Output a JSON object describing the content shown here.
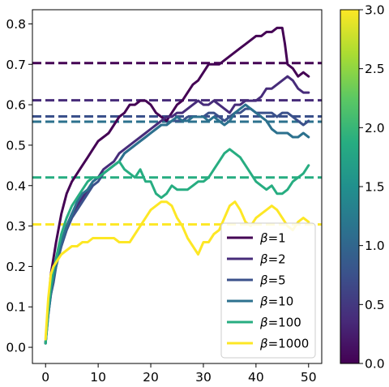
{
  "chart_data": {
    "type": "line",
    "title": "",
    "xlabel": "",
    "ylabel": "",
    "xlim": [
      -2.5,
      52.5
    ],
    "ylim": [
      -0.04,
      0.835
    ],
    "x_ticks": [
      0,
      10,
      20,
      30,
      40,
      50
    ],
    "y_ticks": [
      0.0,
      0.1,
      0.2,
      0.3,
      0.4,
      0.5,
      0.6,
      0.7,
      0.8
    ],
    "x_tick_labels": [
      "0",
      "10",
      "20",
      "30",
      "40",
      "50"
    ],
    "y_tick_labels": [
      "0.0",
      "0.1",
      "0.2",
      "0.3",
      "0.4",
      "0.5",
      "0.6",
      "0.7",
      "0.8"
    ],
    "legend_placement": "lower-right",
    "grid": false,
    "colormap": "viridis",
    "colorbar": {
      "range": [
        0.0,
        3.0
      ],
      "ticks": [
        0.0,
        0.5,
        1.0,
        1.5,
        2.0,
        2.5,
        3.0
      ],
      "tick_labels": [
        "0.0",
        "0.5",
        "1.0",
        "1.5",
        "2.0",
        "2.5",
        "3.0"
      ],
      "stops": [
        "#440154",
        "#472c7a",
        "#3b518b",
        "#2c718e",
        "#21908d",
        "#27ad81",
        "#5cc863",
        "#aadc32",
        "#fde725"
      ]
    },
    "series": [
      {
        "name": "β=1",
        "label_prefix": "β",
        "label_value": "=1",
        "color": "#440154",
        "baseline": 0.703,
        "x": [
          0,
          0.5,
          1,
          1.5,
          2,
          3,
          4,
          5,
          6,
          7,
          8,
          9,
          10,
          11,
          12,
          13,
          14,
          15,
          16,
          17,
          18,
          19,
          20,
          21,
          22,
          23,
          24,
          25,
          26,
          27,
          28,
          29,
          30,
          31,
          32,
          33,
          34,
          35,
          36,
          37,
          38,
          39,
          40,
          41,
          42,
          43,
          44,
          45,
          45.5,
          46,
          47,
          48,
          49,
          50
        ],
        "y": [
          0.01,
          0.1,
          0.18,
          0.22,
          0.26,
          0.33,
          0.38,
          0.41,
          0.43,
          0.45,
          0.47,
          0.49,
          0.51,
          0.52,
          0.53,
          0.55,
          0.57,
          0.58,
          0.6,
          0.6,
          0.61,
          0.61,
          0.6,
          0.58,
          0.57,
          0.56,
          0.58,
          0.6,
          0.61,
          0.63,
          0.65,
          0.66,
          0.68,
          0.7,
          0.7,
          0.7,
          0.71,
          0.72,
          0.73,
          0.74,
          0.75,
          0.76,
          0.77,
          0.77,
          0.78,
          0.78,
          0.79,
          0.79,
          0.75,
          0.7,
          0.69,
          0.67,
          0.68,
          0.67
        ]
      },
      {
        "name": "β=2",
        "label_prefix": "β",
        "label_value": "=2",
        "color": "#472c7a",
        "baseline": 0.611,
        "x": [
          0,
          0.5,
          1,
          1.5,
          2,
          3,
          4,
          5,
          6,
          7,
          8,
          9,
          10,
          11,
          12,
          13,
          14,
          15,
          16,
          17,
          18,
          19,
          20,
          21,
          22,
          23,
          24,
          25,
          26,
          27,
          28,
          29,
          30,
          31,
          32,
          33,
          34,
          35,
          36,
          37,
          38,
          39,
          40,
          41,
          42,
          43,
          44,
          45,
          46,
          47,
          48,
          49,
          50
        ],
        "y": [
          0.01,
          0.09,
          0.14,
          0.17,
          0.21,
          0.26,
          0.3,
          0.33,
          0.35,
          0.37,
          0.39,
          0.41,
          0.42,
          0.44,
          0.45,
          0.46,
          0.48,
          0.49,
          0.5,
          0.51,
          0.52,
          0.53,
          0.54,
          0.55,
          0.56,
          0.57,
          0.57,
          0.58,
          0.58,
          0.59,
          0.6,
          0.61,
          0.6,
          0.6,
          0.61,
          0.6,
          0.59,
          0.58,
          0.6,
          0.6,
          0.61,
          0.61,
          0.61,
          0.62,
          0.64,
          0.64,
          0.65,
          0.66,
          0.67,
          0.66,
          0.64,
          0.63,
          0.63
        ]
      },
      {
        "name": "β=5",
        "label_prefix": "β",
        "label_value": "=5",
        "color": "#3b518b",
        "baseline": 0.571,
        "x": [
          0,
          0.5,
          1,
          1.5,
          2,
          3,
          4,
          5,
          6,
          7,
          8,
          9,
          10,
          11,
          12,
          13,
          14,
          15,
          16,
          17,
          18,
          19,
          20,
          21,
          22,
          23,
          24,
          25,
          26,
          27,
          28,
          29,
          30,
          31,
          32,
          33,
          34,
          35,
          36,
          37,
          38,
          39,
          40,
          41,
          42,
          43,
          44,
          45,
          46,
          47,
          48,
          49,
          50
        ],
        "y": [
          0.01,
          0.08,
          0.13,
          0.16,
          0.2,
          0.25,
          0.29,
          0.32,
          0.34,
          0.36,
          0.38,
          0.4,
          0.41,
          0.43,
          0.44,
          0.45,
          0.46,
          0.48,
          0.49,
          0.5,
          0.51,
          0.52,
          0.53,
          0.54,
          0.55,
          0.55,
          0.56,
          0.56,
          0.56,
          0.57,
          0.57,
          0.57,
          0.57,
          0.58,
          0.58,
          0.57,
          0.56,
          0.57,
          0.58,
          0.58,
          0.59,
          0.59,
          0.58,
          0.58,
          0.58,
          0.58,
          0.57,
          0.58,
          0.58,
          0.57,
          0.56,
          0.55,
          0.56
        ]
      },
      {
        "name": "β=10",
        "label_prefix": "β",
        "label_value": "=10",
        "color": "#2c718e",
        "baseline": 0.558,
        "x": [
          0,
          0.5,
          1,
          1.5,
          2,
          3,
          4,
          5,
          6,
          7,
          8,
          9,
          10,
          11,
          12,
          13,
          14,
          15,
          16,
          17,
          18,
          19,
          20,
          21,
          22,
          23,
          24,
          25,
          26,
          27,
          28,
          29,
          30,
          31,
          32,
          33,
          34,
          35,
          36,
          37,
          38,
          39,
          40,
          41,
          42,
          43,
          44,
          45,
          46,
          47,
          48,
          49,
          50
        ],
        "y": [
          0.01,
          0.08,
          0.13,
          0.17,
          0.2,
          0.26,
          0.3,
          0.33,
          0.36,
          0.38,
          0.39,
          0.41,
          0.42,
          0.43,
          0.44,
          0.45,
          0.46,
          0.48,
          0.49,
          0.5,
          0.51,
          0.52,
          0.53,
          0.54,
          0.55,
          0.55,
          0.56,
          0.57,
          0.56,
          0.56,
          0.57,
          0.57,
          0.57,
          0.56,
          0.57,
          0.56,
          0.55,
          0.56,
          0.58,
          0.59,
          0.6,
          0.59,
          0.58,
          0.57,
          0.56,
          0.54,
          0.53,
          0.53,
          0.53,
          0.52,
          0.52,
          0.53,
          0.52
        ]
      },
      {
        "name": "β=100",
        "label_prefix": "β",
        "label_value": "=100",
        "color": "#27ad81",
        "baseline": 0.42,
        "x": [
          0,
          0.5,
          1,
          1.5,
          2,
          3,
          4,
          5,
          6,
          7,
          8,
          9,
          10,
          11,
          12,
          13,
          14,
          15,
          16,
          17,
          18,
          19,
          20,
          21,
          22,
          23,
          24,
          25,
          26,
          27,
          28,
          29,
          30,
          31,
          32,
          33,
          34,
          35,
          36,
          37,
          38,
          39,
          40,
          41,
          42,
          43,
          44,
          45,
          46,
          47,
          48,
          49,
          50
        ],
        "y": [
          0.01,
          0.09,
          0.15,
          0.19,
          0.22,
          0.28,
          0.32,
          0.35,
          0.37,
          0.39,
          0.41,
          0.42,
          0.42,
          0.43,
          0.44,
          0.45,
          0.46,
          0.44,
          0.43,
          0.42,
          0.44,
          0.41,
          0.41,
          0.38,
          0.37,
          0.38,
          0.4,
          0.39,
          0.39,
          0.39,
          0.4,
          0.41,
          0.41,
          0.42,
          0.44,
          0.46,
          0.48,
          0.49,
          0.48,
          0.47,
          0.45,
          0.43,
          0.41,
          0.4,
          0.39,
          0.4,
          0.38,
          0.38,
          0.39,
          0.41,
          0.42,
          0.43,
          0.45
        ]
      },
      {
        "name": "β=1000",
        "label_prefix": "β",
        "label_value": "=1000",
        "color": "#fde725",
        "baseline": 0.304,
        "x": [
          0,
          0.5,
          1,
          1.5,
          2,
          3,
          4,
          5,
          6,
          7,
          8,
          9,
          10,
          11,
          12,
          13,
          14,
          15,
          16,
          17,
          18,
          19,
          20,
          21,
          22,
          23,
          24,
          25,
          26,
          27,
          28,
          29,
          30,
          31,
          32,
          33,
          34,
          35,
          36,
          37,
          38,
          39,
          40,
          41,
          42,
          43,
          44,
          45,
          46,
          47,
          48,
          49,
          50
        ],
        "y": [
          0.02,
          0.12,
          0.18,
          0.2,
          0.21,
          0.23,
          0.24,
          0.25,
          0.25,
          0.26,
          0.26,
          0.27,
          0.27,
          0.27,
          0.27,
          0.27,
          0.26,
          0.26,
          0.26,
          0.28,
          0.3,
          0.32,
          0.34,
          0.35,
          0.36,
          0.36,
          0.35,
          0.32,
          0.3,
          0.27,
          0.25,
          0.23,
          0.26,
          0.26,
          0.28,
          0.29,
          0.32,
          0.35,
          0.36,
          0.34,
          0.31,
          0.3,
          0.32,
          0.33,
          0.34,
          0.35,
          0.34,
          0.32,
          0.3,
          0.29,
          0.31,
          0.32,
          0.31
        ]
      }
    ]
  }
}
